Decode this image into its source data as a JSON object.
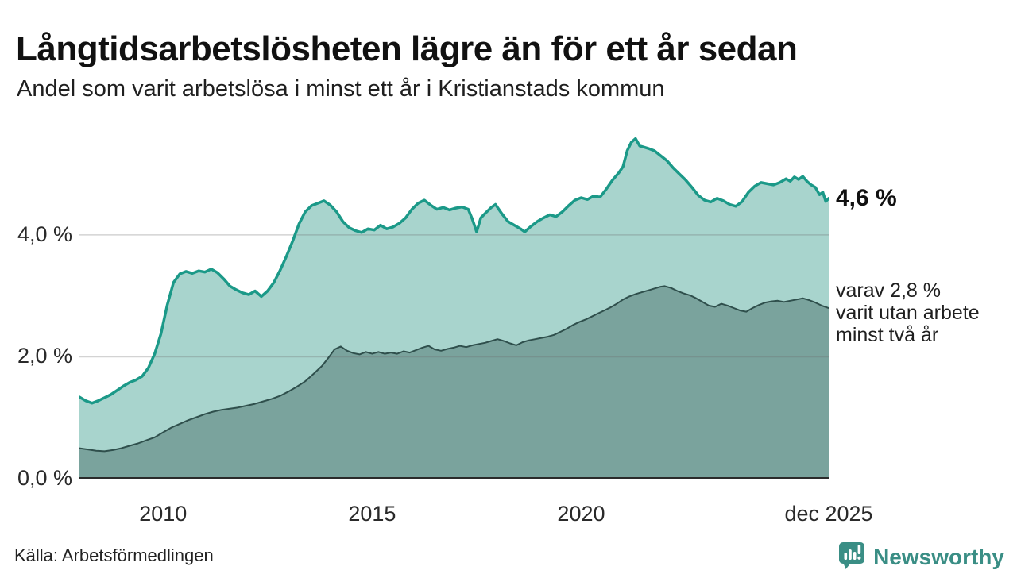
{
  "header": {
    "title": "Långtidsarbetslösheten lägre än för ett år sedan",
    "subtitle": "Andel som varit arbetslösa i minst ett år i Kristianstads kommun"
  },
  "annotations": {
    "latest_total": "4,6 %",
    "subseries_lines": [
      "varav 2,8 %",
      "varit utan arbete",
      "minst två år"
    ]
  },
  "footer": {
    "source": "Källa: Arbetsförmedlingen",
    "logo_text": "Newsworthy"
  },
  "colors": {
    "line_total": "#1b9988",
    "fill_total": "#a8d4cd",
    "line_sub": "#2f4f4c",
    "fill_sub": "#7aa39d",
    "grid": "rgba(110,110,110,0.30)",
    "baseline": "#2b2b2b",
    "logo_teal": "#3a8e85"
  },
  "chart_data": {
    "type": "area",
    "title": "Långtidsarbetslösheten lägre än för ett år sedan",
    "subtitle": "Andel som varit arbetslösa i minst ett år i Kristianstads kommun",
    "x_unit": "decimal_year",
    "x_range": [
      2008.0,
      2025.92
    ],
    "ylim": [
      0,
      5.9
    ],
    "grid": "horizontal",
    "legend_position": "right-annotations",
    "yticks": [
      {
        "label": "0,0 %",
        "value": 0.0
      },
      {
        "label": "2,0 %",
        "value": 2.0
      },
      {
        "label": "4,0 %",
        "value": 4.0
      }
    ],
    "xticks": [
      {
        "label": "2010",
        "year": 2010.0
      },
      {
        "label": "2015",
        "year": 2015.0
      },
      {
        "label": "2020",
        "year": 2020.0
      },
      {
        "label": "dec 2025",
        "year": 2025.92
      }
    ],
    "series": [
      {
        "name": "Andel arbetslösa minst ett år",
        "last_value_label": "4,6 %",
        "points": [
          [
            2008.0,
            1.34
          ],
          [
            2008.15,
            1.28
          ],
          [
            2008.3,
            1.24
          ],
          [
            2008.45,
            1.28
          ],
          [
            2008.6,
            1.33
          ],
          [
            2008.75,
            1.38
          ],
          [
            2008.9,
            1.45
          ],
          [
            2009.05,
            1.52
          ],
          [
            2009.2,
            1.58
          ],
          [
            2009.35,
            1.62
          ],
          [
            2009.5,
            1.68
          ],
          [
            2009.65,
            1.82
          ],
          [
            2009.8,
            2.05
          ],
          [
            2009.95,
            2.38
          ],
          [
            2010.1,
            2.85
          ],
          [
            2010.25,
            3.22
          ],
          [
            2010.4,
            3.36
          ],
          [
            2010.55,
            3.4
          ],
          [
            2010.7,
            3.37
          ],
          [
            2010.85,
            3.41
          ],
          [
            2011.0,
            3.39
          ],
          [
            2011.15,
            3.44
          ],
          [
            2011.3,
            3.38
          ],
          [
            2011.45,
            3.28
          ],
          [
            2011.6,
            3.16
          ],
          [
            2011.75,
            3.1
          ],
          [
            2011.9,
            3.05
          ],
          [
            2012.05,
            3.02
          ],
          [
            2012.2,
            3.08
          ],
          [
            2012.35,
            2.99
          ],
          [
            2012.5,
            3.08
          ],
          [
            2012.65,
            3.22
          ],
          [
            2012.8,
            3.42
          ],
          [
            2012.95,
            3.65
          ],
          [
            2013.1,
            3.9
          ],
          [
            2013.25,
            4.18
          ],
          [
            2013.4,
            4.38
          ],
          [
            2013.55,
            4.48
          ],
          [
            2013.7,
            4.52
          ],
          [
            2013.85,
            4.56
          ],
          [
            2014.0,
            4.49
          ],
          [
            2014.15,
            4.38
          ],
          [
            2014.3,
            4.22
          ],
          [
            2014.45,
            4.12
          ],
          [
            2014.6,
            4.07
          ],
          [
            2014.75,
            4.04
          ],
          [
            2014.9,
            4.1
          ],
          [
            2015.05,
            4.08
          ],
          [
            2015.2,
            4.16
          ],
          [
            2015.35,
            4.1
          ],
          [
            2015.5,
            4.13
          ],
          [
            2015.65,
            4.19
          ],
          [
            2015.8,
            4.28
          ],
          [
            2015.95,
            4.42
          ],
          [
            2016.1,
            4.52
          ],
          [
            2016.25,
            4.57
          ],
          [
            2016.4,
            4.49
          ],
          [
            2016.55,
            4.42
          ],
          [
            2016.7,
            4.45
          ],
          [
            2016.85,
            4.41
          ],
          [
            2017.0,
            4.44
          ],
          [
            2017.15,
            4.46
          ],
          [
            2017.3,
            4.42
          ],
          [
            2017.4,
            4.25
          ],
          [
            2017.5,
            4.05
          ],
          [
            2017.6,
            4.28
          ],
          [
            2017.7,
            4.35
          ],
          [
            2017.85,
            4.45
          ],
          [
            2017.95,
            4.5
          ],
          [
            2018.1,
            4.35
          ],
          [
            2018.25,
            4.22
          ],
          [
            2018.4,
            4.16
          ],
          [
            2018.55,
            4.1
          ],
          [
            2018.65,
            4.05
          ],
          [
            2018.8,
            4.14
          ],
          [
            2018.95,
            4.22
          ],
          [
            2019.1,
            4.28
          ],
          [
            2019.25,
            4.33
          ],
          [
            2019.4,
            4.3
          ],
          [
            2019.55,
            4.38
          ],
          [
            2019.7,
            4.48
          ],
          [
            2019.85,
            4.57
          ],
          [
            2020.0,
            4.61
          ],
          [
            2020.15,
            4.58
          ],
          [
            2020.3,
            4.64
          ],
          [
            2020.45,
            4.62
          ],
          [
            2020.6,
            4.75
          ],
          [
            2020.75,
            4.9
          ],
          [
            2020.9,
            5.02
          ],
          [
            2021.0,
            5.12
          ],
          [
            2021.1,
            5.38
          ],
          [
            2021.2,
            5.52
          ],
          [
            2021.3,
            5.58
          ],
          [
            2021.4,
            5.46
          ],
          [
            2021.5,
            5.44
          ],
          [
            2021.6,
            5.42
          ],
          [
            2021.75,
            5.38
          ],
          [
            2021.9,
            5.3
          ],
          [
            2022.05,
            5.22
          ],
          [
            2022.2,
            5.1
          ],
          [
            2022.35,
            5.0
          ],
          [
            2022.5,
            4.9
          ],
          [
            2022.65,
            4.78
          ],
          [
            2022.8,
            4.65
          ],
          [
            2022.95,
            4.57
          ],
          [
            2023.1,
            4.54
          ],
          [
            2023.25,
            4.6
          ],
          [
            2023.4,
            4.56
          ],
          [
            2023.55,
            4.5
          ],
          [
            2023.7,
            4.47
          ],
          [
            2023.85,
            4.55
          ],
          [
            2024.0,
            4.7
          ],
          [
            2024.15,
            4.8
          ],
          [
            2024.3,
            4.86
          ],
          [
            2024.45,
            4.84
          ],
          [
            2024.6,
            4.82
          ],
          [
            2024.75,
            4.86
          ],
          [
            2024.9,
            4.92
          ],
          [
            2025.0,
            4.88
          ],
          [
            2025.1,
            4.95
          ],
          [
            2025.2,
            4.91
          ],
          [
            2025.3,
            4.96
          ],
          [
            2025.4,
            4.88
          ],
          [
            2025.5,
            4.82
          ],
          [
            2025.6,
            4.78
          ],
          [
            2025.7,
            4.66
          ],
          [
            2025.78,
            4.7
          ],
          [
            2025.85,
            4.55
          ],
          [
            2025.92,
            4.6
          ]
        ]
      },
      {
        "name": "varav utan arbete minst två år",
        "last_value_label": "2,8 %",
        "points": [
          [
            2008.0,
            0.5
          ],
          [
            2008.2,
            0.48
          ],
          [
            2008.4,
            0.46
          ],
          [
            2008.6,
            0.45
          ],
          [
            2008.8,
            0.47
          ],
          [
            2009.0,
            0.5
          ],
          [
            2009.2,
            0.54
          ],
          [
            2009.4,
            0.58
          ],
          [
            2009.6,
            0.63
          ],
          [
            2009.8,
            0.68
          ],
          [
            2010.0,
            0.76
          ],
          [
            2010.2,
            0.84
          ],
          [
            2010.4,
            0.9
          ],
          [
            2010.6,
            0.96
          ],
          [
            2010.8,
            1.01
          ],
          [
            2011.0,
            1.06
          ],
          [
            2011.2,
            1.1
          ],
          [
            2011.4,
            1.13
          ],
          [
            2011.6,
            1.15
          ],
          [
            2011.8,
            1.17
          ],
          [
            2012.0,
            1.2
          ],
          [
            2012.2,
            1.23
          ],
          [
            2012.4,
            1.27
          ],
          [
            2012.6,
            1.31
          ],
          [
            2012.8,
            1.36
          ],
          [
            2013.0,
            1.43
          ],
          [
            2013.2,
            1.51
          ],
          [
            2013.4,
            1.6
          ],
          [
            2013.6,
            1.72
          ],
          [
            2013.8,
            1.85
          ],
          [
            2013.95,
            1.98
          ],
          [
            2014.1,
            2.12
          ],
          [
            2014.25,
            2.17
          ],
          [
            2014.4,
            2.1
          ],
          [
            2014.55,
            2.06
          ],
          [
            2014.7,
            2.04
          ],
          [
            2014.85,
            2.08
          ],
          [
            2015.0,
            2.05
          ],
          [
            2015.15,
            2.08
          ],
          [
            2015.3,
            2.05
          ],
          [
            2015.45,
            2.07
          ],
          [
            2015.6,
            2.05
          ],
          [
            2015.75,
            2.09
          ],
          [
            2015.9,
            2.07
          ],
          [
            2016.05,
            2.11
          ],
          [
            2016.2,
            2.15
          ],
          [
            2016.35,
            2.18
          ],
          [
            2016.5,
            2.12
          ],
          [
            2016.65,
            2.1
          ],
          [
            2016.8,
            2.13
          ],
          [
            2016.95,
            2.15
          ],
          [
            2017.1,
            2.18
          ],
          [
            2017.25,
            2.16
          ],
          [
            2017.4,
            2.19
          ],
          [
            2017.55,
            2.21
          ],
          [
            2017.7,
            2.23
          ],
          [
            2017.85,
            2.26
          ],
          [
            2018.0,
            2.29
          ],
          [
            2018.15,
            2.26
          ],
          [
            2018.3,
            2.22
          ],
          [
            2018.45,
            2.19
          ],
          [
            2018.6,
            2.24
          ],
          [
            2018.75,
            2.27
          ],
          [
            2018.9,
            2.29
          ],
          [
            2019.05,
            2.31
          ],
          [
            2019.2,
            2.33
          ],
          [
            2019.35,
            2.36
          ],
          [
            2019.5,
            2.41
          ],
          [
            2019.65,
            2.46
          ],
          [
            2019.8,
            2.52
          ],
          [
            2019.95,
            2.57
          ],
          [
            2020.1,
            2.61
          ],
          [
            2020.25,
            2.66
          ],
          [
            2020.4,
            2.71
          ],
          [
            2020.55,
            2.76
          ],
          [
            2020.7,
            2.81
          ],
          [
            2020.85,
            2.87
          ],
          [
            2021.0,
            2.94
          ],
          [
            2021.15,
            2.99
          ],
          [
            2021.3,
            3.03
          ],
          [
            2021.45,
            3.06
          ],
          [
            2021.6,
            3.09
          ],
          [
            2021.75,
            3.12
          ],
          [
            2021.9,
            3.15
          ],
          [
            2022.0,
            3.16
          ],
          [
            2022.15,
            3.13
          ],
          [
            2022.3,
            3.08
          ],
          [
            2022.45,
            3.04
          ],
          [
            2022.6,
            3.01
          ],
          [
            2022.75,
            2.96
          ],
          [
            2022.9,
            2.9
          ],
          [
            2023.05,
            2.84
          ],
          [
            2023.2,
            2.82
          ],
          [
            2023.35,
            2.87
          ],
          [
            2023.5,
            2.84
          ],
          [
            2023.65,
            2.8
          ],
          [
            2023.8,
            2.76
          ],
          [
            2023.95,
            2.74
          ],
          [
            2024.1,
            2.8
          ],
          [
            2024.25,
            2.85
          ],
          [
            2024.4,
            2.89
          ],
          [
            2024.55,
            2.91
          ],
          [
            2024.7,
            2.92
          ],
          [
            2024.85,
            2.9
          ],
          [
            2025.0,
            2.92
          ],
          [
            2025.15,
            2.94
          ],
          [
            2025.3,
            2.96
          ],
          [
            2025.45,
            2.93
          ],
          [
            2025.6,
            2.89
          ],
          [
            2025.75,
            2.84
          ],
          [
            2025.92,
            2.8
          ]
        ]
      }
    ]
  }
}
